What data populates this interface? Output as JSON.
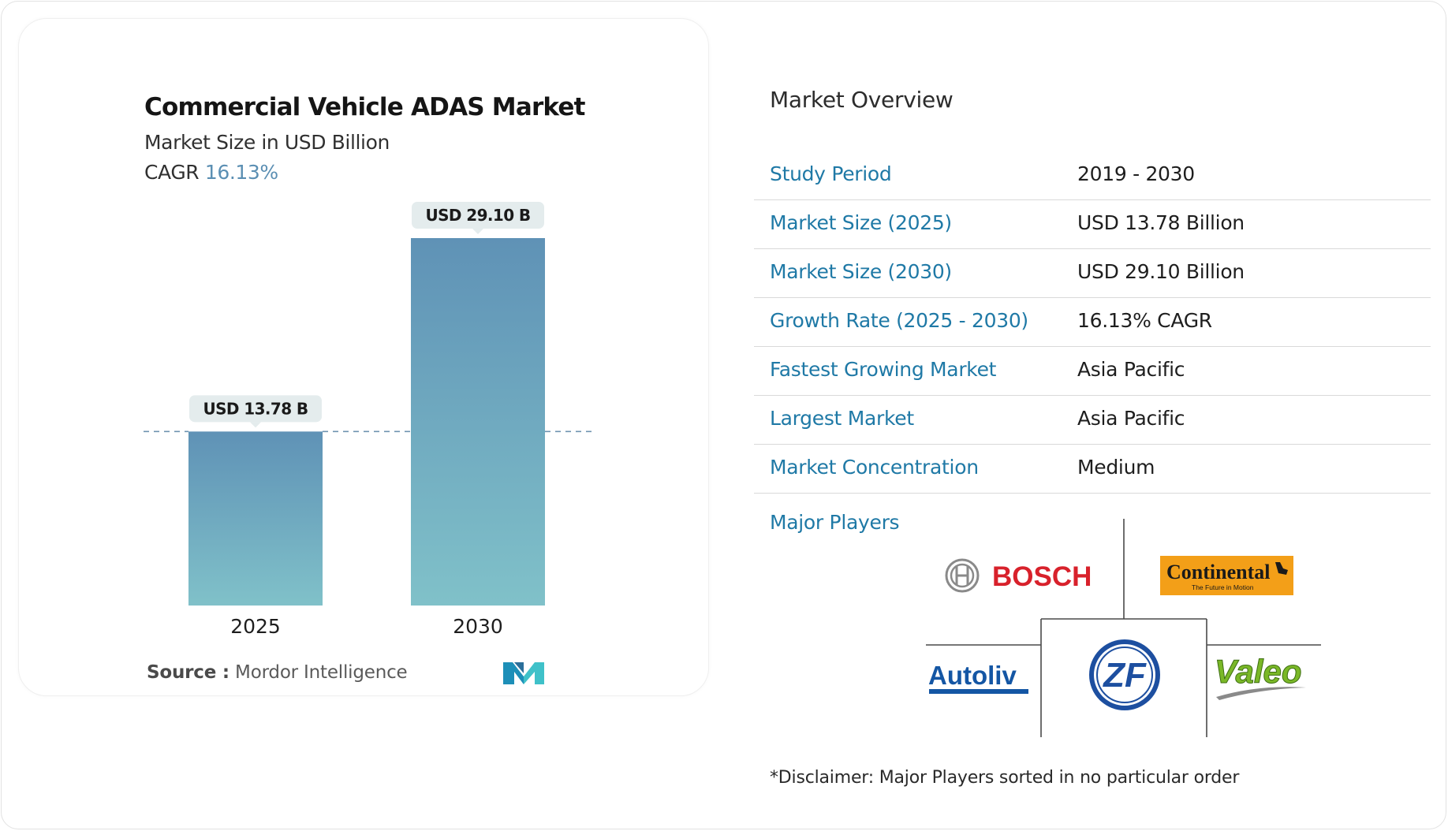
{
  "chart_data": {
    "type": "bar",
    "title": "Commercial Vehicle ADAS Market",
    "subtitle": "Market Size in USD Billion",
    "cagr_label": "CAGR",
    "cagr_value": "16.13%",
    "categories": [
      "2025",
      "2030"
    ],
    "values": [
      13.78,
      29.1
    ],
    "value_labels": [
      "USD 13.78 B",
      "USD 29.10 B"
    ],
    "ylim": [
      0,
      29.1
    ],
    "grid": false,
    "reference_line": "2025 value, dashed",
    "colors": {
      "bar_top": "#5f92b6",
      "bar_bottom": "#80c1c9",
      "callout": "#e4eced",
      "dash": "#6f93b0"
    }
  },
  "source": {
    "label": "Source :",
    "text": "Mordor Intelligence",
    "logo_icon": "mordor-intelligence-logo"
  },
  "overview": {
    "title": "Market Overview",
    "rows": [
      {
        "label": "Study Period",
        "value": "2019 - 2030"
      },
      {
        "label": "Market Size (2025)",
        "value": "USD 13.78 Billion"
      },
      {
        "label": "Market Size (2030)",
        "value": "USD 29.10 Billion"
      },
      {
        "label": "Growth Rate (2025 - 2030)",
        "value": "16.13% CAGR"
      },
      {
        "label": "Fastest Growing Market",
        "value": "Asia Pacific"
      },
      {
        "label": "Largest Market",
        "value": "Asia Pacific"
      },
      {
        "label": "Market Concentration",
        "value": "Medium"
      }
    ]
  },
  "players": {
    "title": "Major Players",
    "logos": [
      {
        "name": "BOSCH",
        "icon": "bosch-logo"
      },
      {
        "name": "Continental",
        "tagline": "The Future in Motion",
        "icon": "continental-logo"
      },
      {
        "name": "Autoliv",
        "icon": "autoliv-logo"
      },
      {
        "name": "ZF",
        "icon": "zf-logo"
      },
      {
        "name": "Valeo",
        "icon": "valeo-logo"
      }
    ]
  },
  "disclaimer": "*Disclaimer: Major Players sorted in no particular order",
  "colors": {
    "accent_blue": "#1f79a6",
    "cagr_blue": "#5b8fb3"
  }
}
